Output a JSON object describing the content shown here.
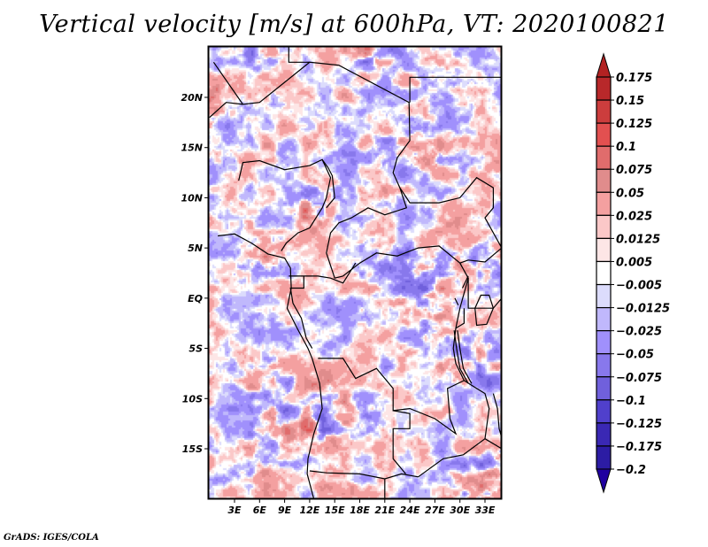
{
  "chart_data": {
    "type": "heatmap",
    "title": "Vertical velocity [m/s] at 600hPa, VT: 2020100821",
    "variable": "Vertical velocity",
    "units": "m/s",
    "level": "600hPa",
    "valid_time": "2020100821",
    "xlabel": "",
    "ylabel": "",
    "x_range_deg_east": [
      0,
      35
    ],
    "y_range_deg_north": [
      -20,
      25
    ],
    "x_ticks": [
      {
        "value": 3,
        "label": "3E"
      },
      {
        "value": 6,
        "label": "6E"
      },
      {
        "value": 9,
        "label": "9E"
      },
      {
        "value": 12,
        "label": "12E"
      },
      {
        "value": 15,
        "label": "15E"
      },
      {
        "value": 18,
        "label": "18E"
      },
      {
        "value": 21,
        "label": "21E"
      },
      {
        "value": 24,
        "label": "24E"
      },
      {
        "value": 27,
        "label": "27E"
      },
      {
        "value": 30,
        "label": "30E"
      },
      {
        "value": 33,
        "label": "33E"
      }
    ],
    "y_ticks": [
      {
        "value": 20,
        "label": "20N"
      },
      {
        "value": 15,
        "label": "15N"
      },
      {
        "value": 10,
        "label": "10N"
      },
      {
        "value": 5,
        "label": "5N"
      },
      {
        "value": 0,
        "label": "EQ"
      },
      {
        "value": -5,
        "label": "5S"
      },
      {
        "value": -10,
        "label": "10S"
      },
      {
        "value": -15,
        "label": "15S"
      }
    ],
    "colorbar": {
      "orientation": "vertical",
      "position": "right",
      "extend": "both",
      "levels": [
        0.175,
        0.15,
        0.125,
        0.1,
        0.075,
        0.05,
        0.025,
        0.0125,
        0.005,
        -0.005,
        -0.0125,
        -0.025,
        -0.05,
        -0.075,
        -0.1,
        -0.125,
        -0.175,
        -0.2
      ],
      "level_labels": [
        "0.175",
        "0.15",
        "0.125",
        "0.1",
        "0.075",
        "0.05",
        "0.025",
        "0.0125",
        "0.005",
        "−0.005",
        "−0.0125",
        "−0.025",
        "−0.05",
        "−0.075",
        "−0.1",
        "−0.125",
        "−0.175",
        "−0.2"
      ],
      "colors": [
        "#b22222",
        "#b8282a",
        "#cc3d3d",
        "#e25050",
        "#e06c6c",
        "#e08c8c",
        "#f4a0a0",
        "#fbc8c8",
        "#fde6e6",
        "#ffffff",
        "#dcdcfc",
        "#c0b8fc",
        "#a090fc",
        "#8878ec",
        "#7060dc",
        "#5040cc",
        "#3a28b4",
        "#2c1ca4",
        "#2000a0"
      ]
    },
    "features": [
      "country borders",
      "coastlines",
      "lakes"
    ],
    "grid": false
  },
  "footer": "GrADS: IGES/COLA"
}
